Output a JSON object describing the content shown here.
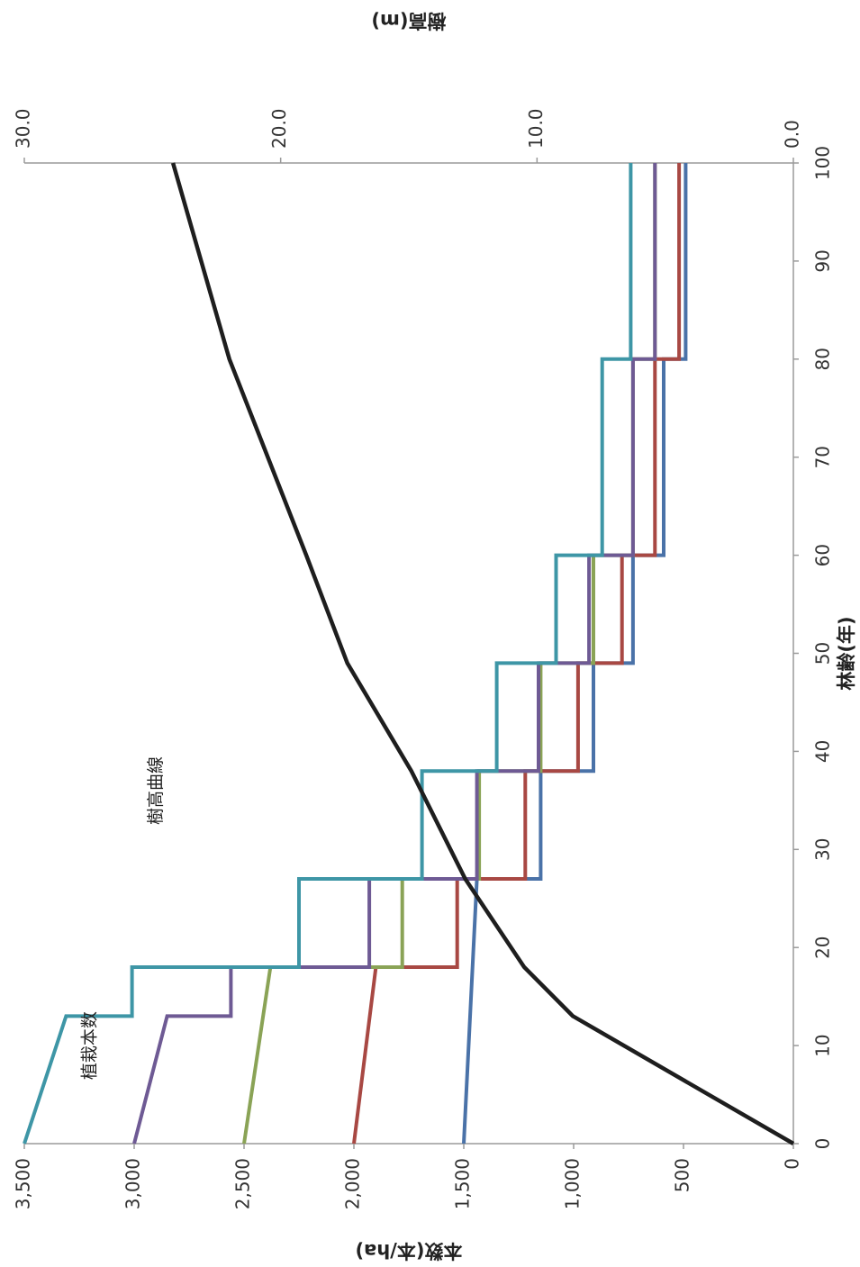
{
  "chart_data": {
    "type": "line",
    "xlabel": "林齢(年)",
    "ylabel": "本数(本/ha)",
    "ylabel_right": "樹高(m)",
    "xlim": [
      0,
      100
    ],
    "ylim": [
      0,
      3500
    ],
    "ylim_right": [
      0,
      30
    ],
    "x_ticks": [
      "0",
      "10",
      "20",
      "30",
      "40",
      "50",
      "60",
      "70",
      "80",
      "90",
      "100"
    ],
    "y_ticks": [
      "0",
      "500",
      "1,000",
      "1,500",
      "2,000",
      "2,500",
      "3,000",
      "3,500"
    ],
    "y_right_ticks": [
      "0.0",
      "10.0",
      "20.0",
      "30.0"
    ],
    "grid": false,
    "annotations": [
      {
        "text": "植栽本数",
        "x": 10,
        "y": 3200
      },
      {
        "text": "樹高曲線",
        "x": 36,
        "y": 2900
      }
    ],
    "colors": {
      "s1500": "#4a72a8",
      "s2000": "#a84843",
      "s2500": "#8aa356",
      "s3000": "#6e5a94",
      "s3500": "#3e96a6",
      "height": "#1e1e1e"
    },
    "series": [
      {
        "color": "#4a72a8",
        "x": [
          0,
          27,
          27,
          38,
          38,
          49,
          49,
          60,
          60,
          80,
          80,
          100
        ],
        "y": [
          1500,
          1440,
          1150,
          1150,
          910,
          910,
          730,
          730,
          590,
          590,
          490,
          490
        ]
      },
      {
        "color": "#a84843",
        "x": [
          0,
          18,
          18,
          27,
          27,
          38,
          38,
          49,
          49,
          60,
          60,
          80,
          80,
          100
        ],
        "y": [
          2000,
          1900,
          1530,
          1530,
          1220,
          1220,
          980,
          980,
          780,
          780,
          630,
          630,
          520,
          520
        ]
      },
      {
        "color": "#8aa356",
        "x": [
          0,
          18,
          18,
          27,
          27,
          38,
          38,
          49,
          49,
          60,
          60,
          80,
          80,
          100
        ],
        "y": [
          2500,
          2380,
          1780,
          1780,
          1430,
          1430,
          1150,
          1150,
          910,
          910,
          730,
          730,
          630,
          630
        ]
      },
      {
        "color": "#6e5a94",
        "x": [
          0,
          13,
          13,
          18,
          18,
          27,
          27,
          38,
          38,
          49,
          49,
          60,
          60,
          80,
          80,
          100
        ],
        "y": [
          3000,
          2850,
          2560,
          2560,
          1930,
          1930,
          1440,
          1440,
          1160,
          1160,
          930,
          930,
          730,
          730,
          630,
          630
        ]
      },
      {
        "color": "#3e96a6",
        "x": [
          0,
          13,
          13,
          18,
          18,
          27,
          27,
          38,
          38,
          49,
          49,
          60,
          60,
          80,
          80,
          100
        ],
        "y": [
          3500,
          3310,
          3010,
          3010,
          2250,
          2250,
          1690,
          1690,
          1350,
          1350,
          1080,
          1080,
          870,
          870,
          740,
          740
        ]
      },
      {
        "color": "#1e1e1e",
        "axis": "right",
        "x": [
          0,
          13,
          18,
          27,
          38,
          49,
          60,
          80,
          100
        ],
        "y": [
          0,
          8.6,
          10.5,
          12.8,
          14.9,
          17.4,
          19.0,
          22.0,
          24.2
        ]
      }
    ]
  }
}
